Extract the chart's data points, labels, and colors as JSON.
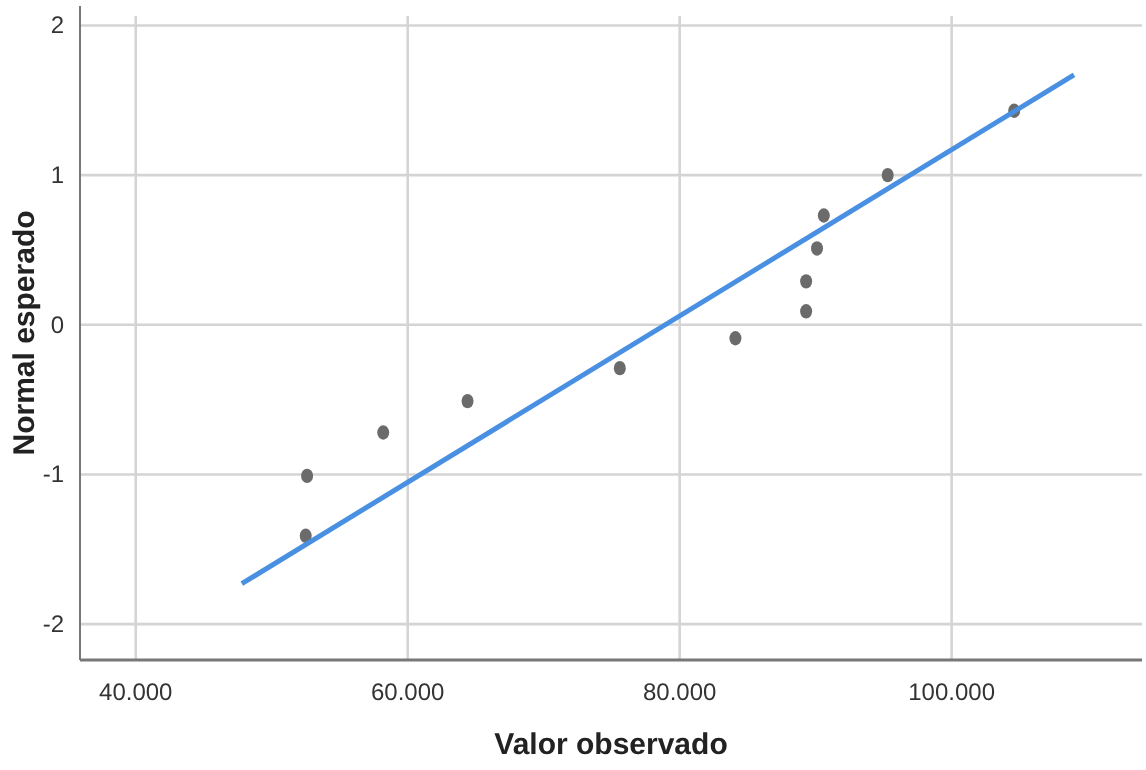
{
  "chart_data": {
    "type": "scatter",
    "xlabel": "Valor observado",
    "ylabel": "Normal esperado",
    "xlim": [
      35900,
      114000
    ],
    "ylim": [
      -2.24,
      2.13
    ],
    "xticks": [
      {
        "value": 40000,
        "label": "40.000"
      },
      {
        "value": 60000,
        "label": "60.000"
      },
      {
        "value": 80000,
        "label": "80.000"
      },
      {
        "value": 100000,
        "label": "100.000"
      }
    ],
    "yticks": [
      -2,
      -1,
      0,
      1,
      2
    ],
    "grid": true,
    "series": [
      {
        "marker": "circle",
        "color": "#6b6b6b",
        "x": [
          52500,
          52600,
          58200,
          64400,
          75600,
          84100,
          89300,
          89300,
          90100,
          90600,
          95300,
          104600
        ],
        "values": [
          -1.41,
          -1.01,
          -0.72,
          -0.51,
          -0.29,
          -0.09,
          0.09,
          0.29,
          0.51,
          0.73,
          1.0,
          1.43
        ]
      },
      {
        "type": "line",
        "marker": "none",
        "color": "#4a90e2",
        "x": [
          47800,
          109000
        ],
        "values": [
          -1.73,
          1.67
        ]
      }
    ]
  }
}
